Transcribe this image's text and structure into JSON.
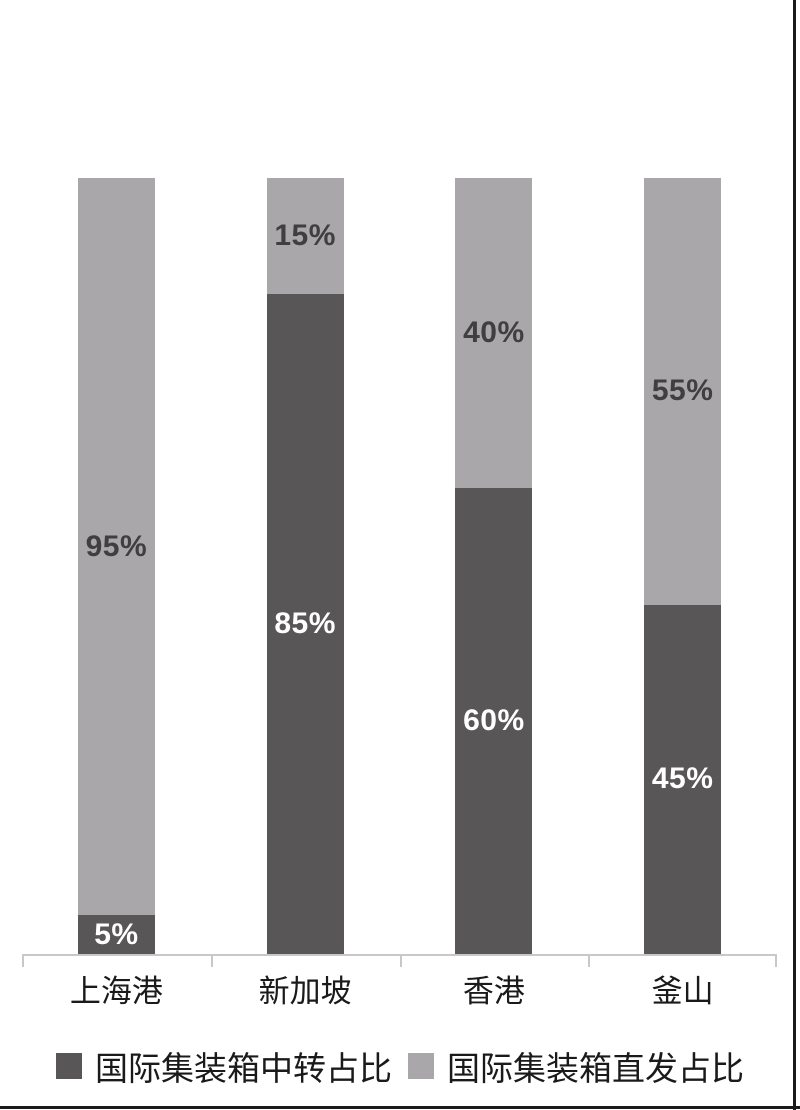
{
  "page": {
    "background": "#ffffff",
    "frame_color": "#1a1a1a"
  },
  "chart_data": {
    "type": "bar",
    "stacked": true,
    "orientation": "vertical",
    "title": "",
    "xlabel": "",
    "ylabel": "",
    "ylim": [
      0,
      100
    ],
    "grid": false,
    "legend_position": "bottom",
    "axis_color": "#c9c7c8",
    "categories": [
      "上海港",
      "新加坡",
      "香港",
      "釜山"
    ],
    "series": [
      {
        "name": "国际集装箱中转占比",
        "color": "#595657",
        "label_color": "#ffffff",
        "values": [
          5,
          85,
          60,
          45
        ],
        "labels": [
          "5%",
          "85%",
          "60%",
          "45%"
        ]
      },
      {
        "name": "国际集装箱直发占比",
        "color": "#a9a7a9",
        "label_color": "#3f3f3f",
        "values": [
          95,
          15,
          40,
          55
        ],
        "labels": [
          "95%",
          "15%",
          "40%",
          "55%"
        ]
      }
    ],
    "value_label_format": "{v}%"
  }
}
